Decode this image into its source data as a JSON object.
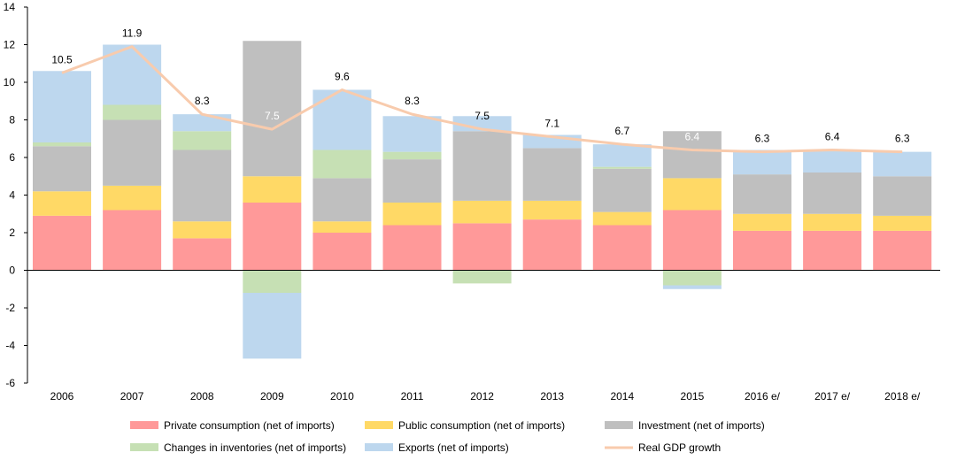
{
  "chart_data": {
    "type": "bar",
    "stacked": true,
    "title": "",
    "xlabel": "",
    "ylabel": "",
    "ylim": [
      -6,
      14
    ],
    "yticks": [
      -6,
      -4,
      -2,
      0,
      2,
      4,
      6,
      8,
      10,
      12,
      14
    ],
    "grid": false,
    "legend_position": "bottom",
    "categories": [
      "2006",
      "2007",
      "2008",
      "2009",
      "2010",
      "2011",
      "2012",
      "2013",
      "2014",
      "2015",
      "2016 e/",
      "2017 e/",
      "2018 e/"
    ],
    "series": [
      {
        "name": "Private consumption (net of imports)",
        "color": "#ff9999",
        "values": [
          2.9,
          3.2,
          1.7,
          3.6,
          2.0,
          2.4,
          2.5,
          2.7,
          2.4,
          3.2,
          2.1,
          2.1,
          2.1
        ]
      },
      {
        "name": "Public consumption (net of imports)",
        "color": "#ffd966",
        "values": [
          1.3,
          1.3,
          0.9,
          1.4,
          0.6,
          1.2,
          1.2,
          1.0,
          0.7,
          1.7,
          0.9,
          0.9,
          0.8
        ]
      },
      {
        "name": "Investment (net of imports)",
        "color": "#bfbfbf",
        "values": [
          2.4,
          3.5,
          3.8,
          7.2,
          2.3,
          2.3,
          3.7,
          2.8,
          2.3,
          2.5,
          2.1,
          2.2,
          2.1
        ]
      },
      {
        "name": "Changes in inventories (net of imports)",
        "color": "#c6e0b4",
        "values": [
          0.2,
          0.8,
          1.0,
          -1.2,
          1.5,
          0.4,
          -0.7,
          0.0,
          0.1,
          -0.8,
          0.0,
          0.0,
          0.0
        ]
      },
      {
        "name": "Exports (net of imports)",
        "color": "#bdd7ee",
        "values": [
          3.8,
          3.2,
          0.9,
          -3.5,
          3.2,
          1.9,
          0.8,
          0.7,
          1.2,
          -0.2,
          1.3,
          1.2,
          1.3
        ]
      }
    ],
    "line_series": {
      "name": "Real GDP growth",
      "color": "#f8cbad",
      "values": [
        10.5,
        11.9,
        8.3,
        7.5,
        9.6,
        8.3,
        7.5,
        7.1,
        6.7,
        6.4,
        6.3,
        6.4,
        6.3
      ],
      "labels": [
        "10.5",
        "11.9",
        "8.3",
        "7.5",
        "9.6",
        "8.3",
        "7.5",
        "7.1",
        "6.7",
        "6.4",
        "6.3",
        "6.4",
        "6.3"
      ]
    }
  }
}
